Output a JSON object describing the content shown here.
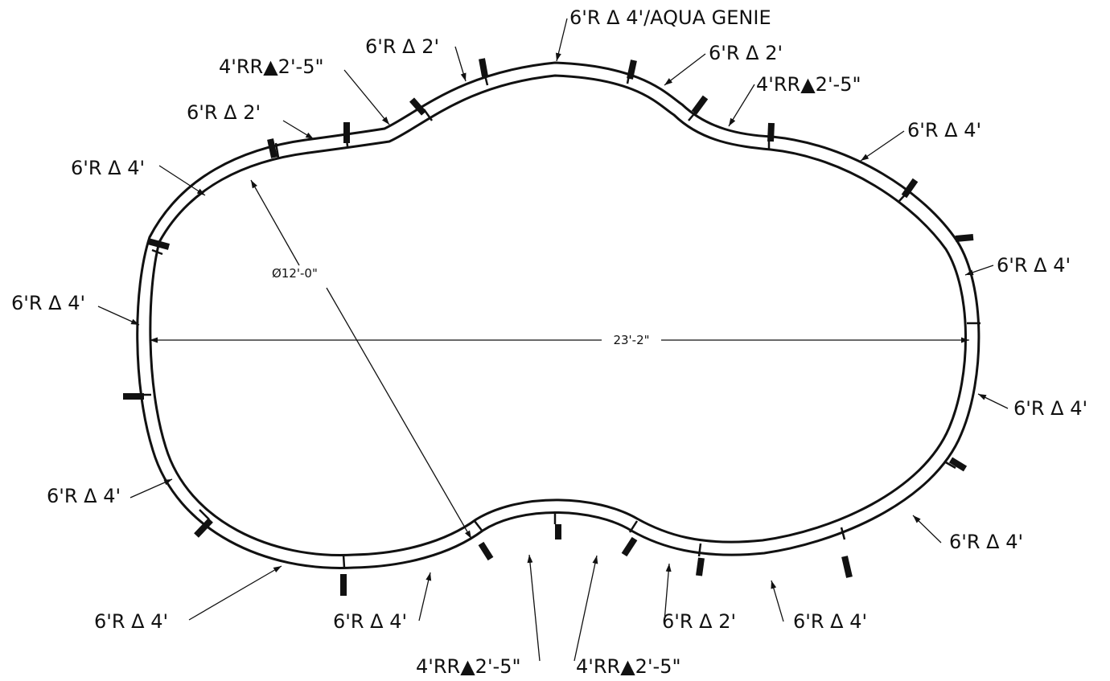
{
  "drawing": {
    "overall_length_label": "23'-2\"",
    "diameter_label": "Ø12'-0\"",
    "callouts": [
      {
        "id": "top-center",
        "text": "6'R Δ 4'/AQUA GENIE"
      },
      {
        "id": "top-left-inner",
        "text": "6'R Δ 2'"
      },
      {
        "id": "top-left-reverse",
        "text": "4'RR▲2'-5\""
      },
      {
        "id": "upper-left-2",
        "text": "6'R Δ 2'"
      },
      {
        "id": "upper-left-4",
        "text": "6'R Δ 4'"
      },
      {
        "id": "left-middle",
        "text": "6'R Δ 4'"
      },
      {
        "id": "lower-left",
        "text": "6'R Δ 4'"
      },
      {
        "id": "bottom-left",
        "text": "6'R Δ 4'"
      },
      {
        "id": "bottom-left-inner",
        "text": "6'R Δ 4'"
      },
      {
        "id": "bottom-reverse-left",
        "text": "4'RR▲2'-5\""
      },
      {
        "id": "bottom-reverse-right",
        "text": "4'RR▲2'-5\""
      },
      {
        "id": "bottom-right-2",
        "text": "6'R Δ 2'"
      },
      {
        "id": "bottom-right-4",
        "text": "6'R Δ 4'"
      },
      {
        "id": "lower-right",
        "text": "6'R Δ 4'"
      },
      {
        "id": "right-lower-middle",
        "text": "6'R Δ 4'"
      },
      {
        "id": "right-upper-middle",
        "text": "6'R Δ 4'"
      },
      {
        "id": "upper-right",
        "text": "6'R Δ 4'"
      },
      {
        "id": "top-right-reverse",
        "text": "4'RR▲2'-5\""
      },
      {
        "id": "top-right-inner",
        "text": "6'R Δ 2'"
      }
    ]
  }
}
